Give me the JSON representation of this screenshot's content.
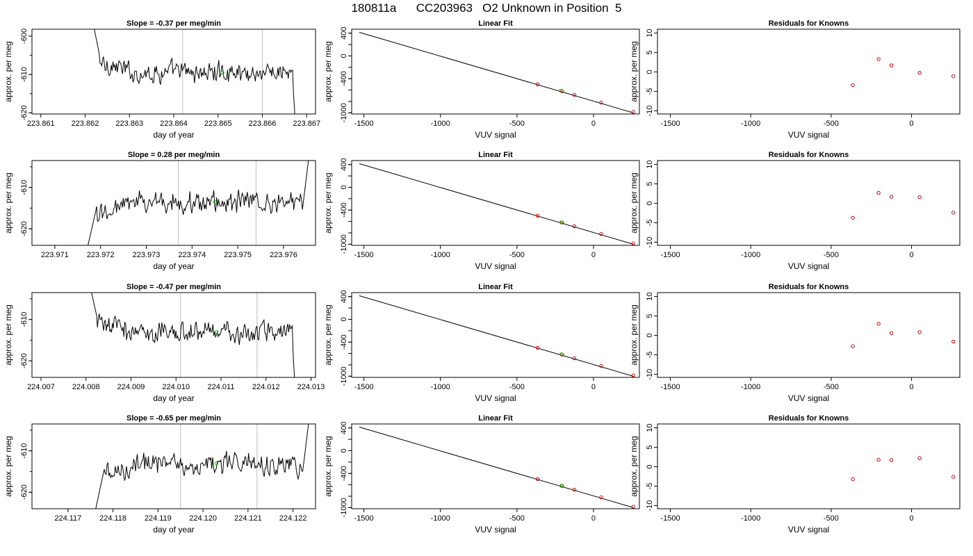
{
  "title": "180811a      CC203963   O2 Unknown in Position  5",
  "chart_data": [
    {
      "type": "line",
      "row": 1,
      "column": "time-series",
      "title": "Slope =  -0.37  per meg/min",
      "xlabel": "day of year",
      "ylabel": "approx. per meg",
      "xlim": [
        223.8608,
        223.8672
      ],
      "ylim": [
        -620.3,
        -598.2
      ],
      "xticks": [
        "223.861",
        "223.862",
        "223.863",
        "223.864",
        "223.865",
        "223.866",
        "223.867"
      ],
      "yticks": [
        "-600",
        "-610",
        "-620"
      ],
      "vlines": [
        223.8642,
        223.866
      ],
      "signal_start": 223.8621,
      "signal_end": 223.8668,
      "level": -609.5,
      "marker": [
        223.8651,
        -609.5
      ],
      "line_color": "#000000",
      "marker_color": "#00cc00",
      "vline_color": "#c8c8c8",
      "grid": false
    },
    {
      "type": "line",
      "linear": true,
      "row": 1,
      "column": "fit",
      "title": "Linear Fit",
      "xlabel": "VUV signal",
      "ylabel": "approx. per meg",
      "xlim": [
        -1580,
        300
      ],
      "ylim": [
        -1020,
        470
      ],
      "xticks": [
        "-1500",
        "-1000",
        "-500",
        "0"
      ],
      "yticks": [
        "400",
        "0",
        "-400",
        "-1000"
      ],
      "line": [
        [
          -1530,
          415
        ],
        [
          260,
          -1000
        ]
      ],
      "known_points": [
        [
          -365,
          -500
        ],
        [
          -205,
          -620
        ],
        [
          -125,
          -685
        ],
        [
          50,
          -820
        ],
        [
          260,
          -985
        ]
      ],
      "unknown_point": [
        -215,
        -610
      ],
      "known_color": "#cc0000",
      "unknown_color": "#00cc00"
    },
    {
      "type": "scatter",
      "row": 1,
      "column": "residuals",
      "title": "Residuals for Knowns",
      "xlabel": "VUV signal",
      "ylabel": "approx. per meg",
      "xlim": [
        -1580,
        300
      ],
      "ylim": [
        -10.8,
        11
      ],
      "xticks": [
        "-1500",
        "-1000",
        "-500",
        "0"
      ],
      "yticks": [
        "10",
        "5",
        "0",
        "-5",
        "-10"
      ],
      "x": [
        -365,
        -205,
        -125,
        50,
        260
      ],
      "y": [
        -3.4,
        3.3,
        1.7,
        -0.2,
        -1.1
      ],
      "point_color": "#cc0000"
    },
    {
      "type": "line",
      "row": 2,
      "column": "time-series",
      "title": "Slope =  0.28  per meg/min",
      "xlabel": "day of year",
      "ylabel": "approx. per meg",
      "xlim": [
        223.9705,
        223.9767
      ],
      "ylim": [
        -624,
        -603.5
      ],
      "xticks": [
        "223.971",
        "223.972",
        "223.973",
        "223.974",
        "223.975",
        "223.976"
      ],
      "yticks": [
        "-610",
        "-620"
      ],
      "vlines": [
        223.9737,
        223.9754
      ],
      "signal_start": 223.9716,
      "signal_end": 223.9766,
      "level": -613.5,
      "marker": [
        223.9745,
        -613.5
      ],
      "line_color": "#000000",
      "marker_color": "#00cc00",
      "vline_color": "#c8c8c8",
      "grid": false
    },
    {
      "type": "line",
      "linear": true,
      "row": 2,
      "column": "fit",
      "title": "Linear Fit",
      "xlabel": "VUV signal",
      "ylabel": "approx. per meg",
      "xlim": [
        -1580,
        300
      ],
      "ylim": [
        -1020,
        470
      ],
      "xticks": [
        "-1500",
        "-1000",
        "-500",
        "0"
      ],
      "yticks": [
        "400",
        "0",
        "-400",
        "-1000"
      ],
      "line": [
        [
          -1530,
          415
        ],
        [
          260,
          -1000
        ]
      ],
      "known_points": [
        [
          -365,
          -500
        ],
        [
          -205,
          -620
        ],
        [
          -125,
          -685
        ],
        [
          50,
          -820
        ],
        [
          260,
          -985
        ]
      ],
      "unknown_point": [
        -210,
        -615
      ],
      "known_color": "#cc0000",
      "unknown_color": "#00cc00"
    },
    {
      "type": "scatter",
      "row": 2,
      "column": "residuals",
      "title": "Residuals for Knowns",
      "xlabel": "VUV signal",
      "ylabel": "approx. per meg",
      "xlim": [
        -1580,
        300
      ],
      "ylim": [
        -10.8,
        11
      ],
      "xticks": [
        "-1500",
        "-1000",
        "-500",
        "0"
      ],
      "yticks": [
        "10",
        "5",
        "0",
        "-5",
        "-10"
      ],
      "x": [
        -365,
        -205,
        -125,
        50,
        260
      ],
      "y": [
        -3.7,
        2.7,
        1.7,
        1.6,
        -2.4
      ],
      "point_color": "#cc0000"
    },
    {
      "type": "line",
      "row": 3,
      "column": "time-series",
      "title": "Slope =  -0.47  per meg/min",
      "xlabel": "day of year",
      "ylabel": "approx. per meg",
      "xlim": [
        224.0068,
        224.0131
      ],
      "ylim": [
        -624,
        -603.5
      ],
      "xticks": [
        "224.007",
        "224.008",
        "224.009",
        "224.010",
        "224.011",
        "224.012",
        "224.013"
      ],
      "yticks": [
        "-610",
        "-620"
      ],
      "vlines": [
        224.0101,
        224.0118
      ],
      "signal_start": 224.008,
      "signal_end": 224.0127,
      "level": -613.0,
      "marker": [
        224.0109,
        -613.0
      ],
      "line_color": "#000000",
      "marker_color": "#00cc00",
      "vline_color": "#c8c8c8",
      "grid": false
    },
    {
      "type": "line",
      "linear": true,
      "row": 3,
      "column": "fit",
      "title": "Linear Fit",
      "xlabel": "VUV signal",
      "ylabel": "approx. per meg",
      "xlim": [
        -1580,
        300
      ],
      "ylim": [
        -1020,
        470
      ],
      "xticks": [
        "-1500",
        "-1000",
        "-500",
        "0"
      ],
      "yticks": [
        "400",
        "0",
        "-400",
        "-1000"
      ],
      "line": [
        [
          -1530,
          415
        ],
        [
          260,
          -1000
        ]
      ],
      "known_points": [
        [
          -365,
          -500
        ],
        [
          -205,
          -620
        ],
        [
          -125,
          -685
        ],
        [
          50,
          -820
        ],
        [
          260,
          -985
        ]
      ],
      "unknown_point": [
        -210,
        -615
      ],
      "known_color": "#cc0000",
      "unknown_color": "#00cc00"
    },
    {
      "type": "scatter",
      "row": 3,
      "column": "residuals",
      "title": "Residuals for Knowns",
      "xlabel": "VUV signal",
      "ylabel": "approx. per meg",
      "xlim": [
        -1580,
        300
      ],
      "ylim": [
        -10.8,
        11
      ],
      "xticks": [
        "-1500",
        "-1000",
        "-500",
        "0"
      ],
      "yticks": [
        "10",
        "5",
        "0",
        "-5",
        "-10"
      ],
      "x": [
        -365,
        -205,
        -125,
        50,
        260
      ],
      "y": [
        -2.8,
        3.0,
        0.6,
        0.8,
        -1.6
      ],
      "point_color": "#cc0000"
    },
    {
      "type": "line",
      "row": 4,
      "column": "time-series",
      "title": "Slope =  -0.65  per meg/min",
      "xlabel": "day of year",
      "ylabel": "approx. per meg",
      "xlim": [
        224.1162,
        224.1225
      ],
      "ylim": [
        -624,
        -603.5
      ],
      "xticks": [
        "224.117",
        "224.118",
        "224.119",
        "224.120",
        "224.121",
        "224.122"
      ],
      "yticks": [
        "-610",
        "-620"
      ],
      "vlines": [
        224.1195,
        224.1212
      ],
      "signal_start": 224.1175,
      "signal_end": 224.1224,
      "level": -613.0,
      "marker": [
        224.1203,
        -613.0
      ],
      "line_color": "#000000",
      "marker_color": "#00cc00",
      "vline_color": "#c8c8c8",
      "grid": false
    },
    {
      "type": "line",
      "linear": true,
      "row": 4,
      "column": "fit",
      "title": "Linear Fit",
      "xlabel": "VUV signal",
      "ylabel": "approx. per meg",
      "xlim": [
        -1580,
        300
      ],
      "ylim": [
        -1020,
        470
      ],
      "xticks": [
        "-1500",
        "-1000",
        "-500",
        "0"
      ],
      "yticks": [
        "400",
        "0",
        "-400",
        "-1000"
      ],
      "line": [
        [
          -1530,
          415
        ],
        [
          260,
          -1000
        ]
      ],
      "known_points": [
        [
          -365,
          -500
        ],
        [
          -205,
          -620
        ],
        [
          -125,
          -685
        ],
        [
          50,
          -820
        ],
        [
          260,
          -985
        ]
      ],
      "unknown_point": [
        -210,
        -615
      ],
      "known_color": "#cc0000",
      "unknown_color": "#00cc00"
    },
    {
      "type": "scatter",
      "row": 4,
      "column": "residuals",
      "title": "Residuals for Knowns",
      "xlabel": "VUV signal",
      "ylabel": "approx. per meg",
      "xlim": [
        -1580,
        300
      ],
      "ylim": [
        -10.8,
        11
      ],
      "xticks": [
        "-1500",
        "-1000",
        "-500",
        "0"
      ],
      "yticks": [
        "10",
        "5",
        "0",
        "-5",
        "-10"
      ],
      "x": [
        -365,
        -205,
        -125,
        50,
        260
      ],
      "y": [
        -3.2,
        1.8,
        1.7,
        2.2,
        -2.6
      ],
      "point_color": "#cc0000"
    }
  ]
}
